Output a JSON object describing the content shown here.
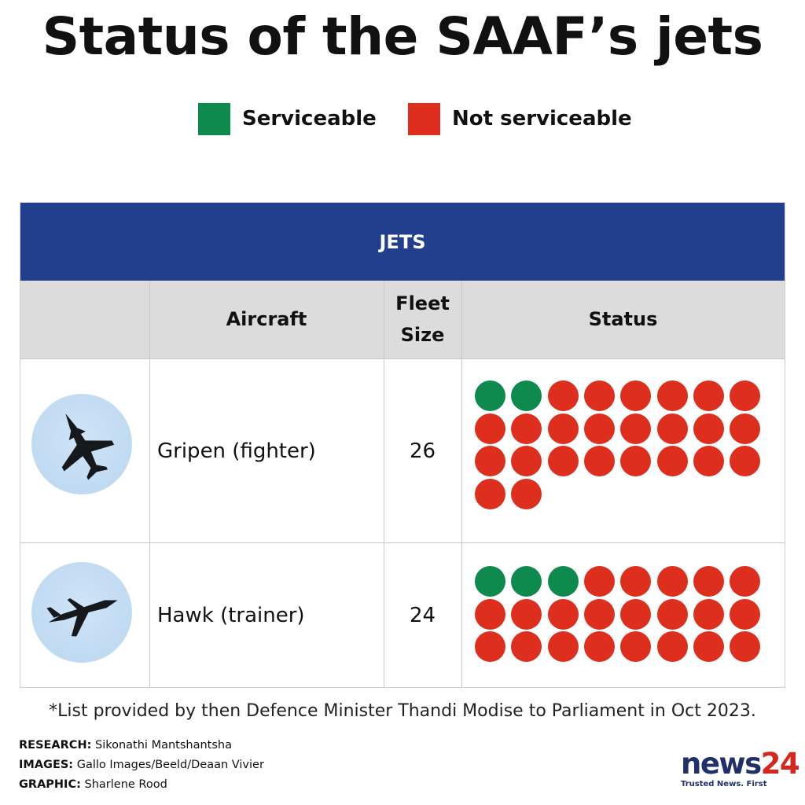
{
  "title": "Status of the SAAF’s jets",
  "legend": {
    "serviceable": {
      "label": "Serviceable",
      "color": "#0e8a4f"
    },
    "not_serviceable": {
      "label": "Not serviceable",
      "color": "#dd2e1e"
    }
  },
  "table": {
    "header": "JETS",
    "columns": [
      "",
      "Aircraft",
      "Fleet Size",
      "Status"
    ],
    "column_fleet_line1": "Fleet",
    "column_fleet_line2": "Size",
    "rows": [
      {
        "icon": "gripen-jet-icon",
        "aircraft": "Gripen (fighter)",
        "fleet_size": "26",
        "serviceable": 2,
        "not_serviceable": 24
      },
      {
        "icon": "hawk-jet-icon",
        "aircraft": "Hawk (trainer)",
        "fleet_size": "24",
        "serviceable": 3,
        "not_serviceable": 21
      }
    ]
  },
  "chart_data": {
    "type": "table",
    "title": "Status of the SAAF’s jets",
    "columns": [
      "Aircraft",
      "Fleet Size",
      "Status"
    ],
    "categories": [
      "Gripen (fighter)",
      "Hawk (trainer)"
    ],
    "series": [
      {
        "name": "Serviceable",
        "values": [
          2,
          3
        ]
      },
      {
        "name": "Not serviceable",
        "values": [
          24,
          21
        ]
      }
    ],
    "fleet_size": [
      26,
      24
    ],
    "legend_position": "top"
  },
  "footnote": "*List provided by then Defence Minister Thandi Modise to Parliament in Oct 2023.",
  "credits": {
    "research_label": "RESEARCH:",
    "research": "Sikonathi Mantshantsha",
    "images_label": "IMAGES:",
    "images": "Gallo Images/Beeld/Deaan Vivier",
    "graphic_label": "GRAPHIC:",
    "graphic": "Sharlene Rood"
  },
  "logo": {
    "brand_text": "news",
    "brand_num": "24",
    "tagline": "Trusted News. First"
  }
}
